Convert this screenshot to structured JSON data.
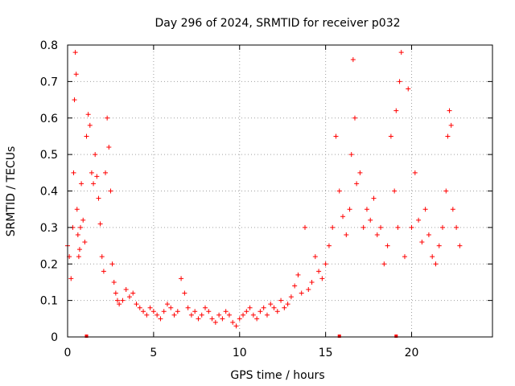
{
  "chart_data": {
    "type": "scatter",
    "title": "Day 296 of 2024, SRMTID for receiver p032",
    "xlabel": "GPS time / hours",
    "ylabel": "SRMTID / TECUs",
    "xlim": [
      0,
      24.7
    ],
    "ylim": [
      0,
      0.8
    ],
    "xticks": [
      0,
      5,
      10,
      15,
      20
    ],
    "xtick_labels": [
      "0",
      "5",
      "10",
      "15",
      "20"
    ],
    "yticks": [
      0,
      0.1,
      0.2,
      0.3,
      0.4,
      0.5,
      0.6,
      0.7,
      0.8
    ],
    "ytick_labels": [
      "0",
      "0.1",
      "0.2",
      "0.3",
      "0.4",
      "0.5",
      "0.6",
      "0.7",
      "0.8"
    ],
    "grid": true,
    "marker": "plus",
    "color": "#ff0000",
    "baseline_markers_x": [
      1.1,
      15.8,
      19.1
    ],
    "series": [
      {
        "name": "SRMTID",
        "x": [
          0.0,
          0.1,
          0.2,
          0.3,
          0.35,
          0.4,
          0.45,
          0.5,
          0.55,
          0.6,
          0.65,
          0.7,
          0.75,
          0.8,
          0.9,
          1.0,
          1.1,
          1.2,
          1.3,
          1.4,
          1.5,
          1.6,
          1.7,
          1.8,
          1.9,
          2.0,
          2.1,
          2.2,
          2.3,
          2.4,
          2.5,
          2.6,
          2.7,
          2.8,
          2.9,
          3.0,
          3.2,
          3.4,
          3.6,
          3.8,
          4.0,
          4.2,
          4.4,
          4.6,
          4.8,
          5.0,
          5.2,
          5.4,
          5.6,
          5.8,
          6.0,
          6.2,
          6.4,
          6.6,
          6.8,
          7.0,
          7.2,
          7.4,
          7.6,
          7.8,
          8.0,
          8.2,
          8.4,
          8.6,
          8.8,
          9.0,
          9.2,
          9.4,
          9.6,
          9.8,
          10.0,
          10.2,
          10.4,
          10.6,
          10.8,
          11.0,
          11.2,
          11.4,
          11.6,
          11.8,
          12.0,
          12.2,
          12.4,
          12.6,
          12.8,
          13.0,
          13.2,
          13.4,
          13.6,
          13.8,
          14.0,
          14.2,
          14.4,
          14.6,
          14.8,
          15.0,
          15.2,
          15.4,
          15.6,
          15.8,
          16.0,
          16.2,
          16.4,
          16.5,
          16.6,
          16.7,
          16.8,
          17.0,
          17.2,
          17.4,
          17.6,
          17.8,
          18.0,
          18.2,
          18.4,
          18.6,
          18.8,
          19.0,
          19.1,
          19.2,
          19.3,
          19.4,
          19.6,
          19.8,
          20.0,
          20.2,
          20.4,
          20.6,
          20.8,
          21.0,
          21.2,
          21.4,
          21.6,
          21.8,
          22.0,
          22.1,
          22.2,
          22.3,
          22.4,
          22.6,
          22.8
        ],
        "y": [
          0.25,
          0.22,
          0.16,
          0.3,
          0.45,
          0.65,
          0.78,
          0.72,
          0.35,
          0.28,
          0.22,
          0.24,
          0.3,
          0.42,
          0.32,
          0.26,
          0.55,
          0.61,
          0.58,
          0.45,
          0.42,
          0.5,
          0.44,
          0.38,
          0.31,
          0.22,
          0.18,
          0.45,
          0.6,
          0.52,
          0.4,
          0.2,
          0.15,
          0.12,
          0.1,
          0.09,
          0.1,
          0.13,
          0.11,
          0.12,
          0.09,
          0.08,
          0.07,
          0.06,
          0.08,
          0.07,
          0.06,
          0.05,
          0.07,
          0.09,
          0.08,
          0.06,
          0.07,
          0.16,
          0.12,
          0.08,
          0.06,
          0.07,
          0.05,
          0.06,
          0.08,
          0.07,
          0.05,
          0.04,
          0.06,
          0.05,
          0.07,
          0.06,
          0.04,
          0.03,
          0.05,
          0.06,
          0.07,
          0.08,
          0.06,
          0.05,
          0.07,
          0.08,
          0.06,
          0.09,
          0.08,
          0.07,
          0.1,
          0.08,
          0.09,
          0.11,
          0.14,
          0.17,
          0.12,
          0.3,
          0.13,
          0.15,
          0.22,
          0.18,
          0.16,
          0.2,
          0.25,
          0.3,
          0.55,
          0.4,
          0.33,
          0.28,
          0.35,
          0.5,
          0.76,
          0.6,
          0.42,
          0.45,
          0.3,
          0.35,
          0.32,
          0.38,
          0.28,
          0.3,
          0.2,
          0.25,
          0.55,
          0.4,
          0.62,
          0.3,
          0.7,
          0.78,
          0.22,
          0.68,
          0.3,
          0.45,
          0.32,
          0.26,
          0.35,
          0.28,
          0.22,
          0.2,
          0.25,
          0.3,
          0.4,
          0.55,
          0.62,
          0.58,
          0.35,
          0.3,
          0.25
        ]
      }
    ]
  }
}
